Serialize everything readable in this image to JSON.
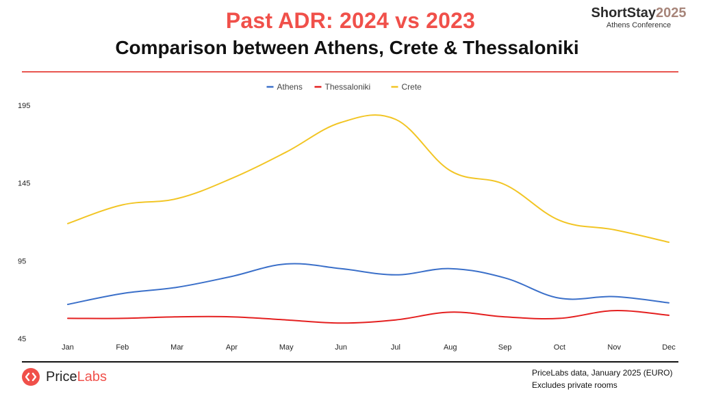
{
  "header": {
    "title": "Past ADR: 2024 vs 2023",
    "subtitle": "Comparison between Athens, Crete & Thessaloniki"
  },
  "brand": {
    "name_part1": "ShortStay",
    "name_part2": "2025",
    "tagline": "Athens Conference"
  },
  "footer": {
    "logo_part1": "Price",
    "logo_part2": "Labs",
    "source_line1": "PriceLabs data, January 2025 (EURO)",
    "source_line2": "Excludes private rooms"
  },
  "colors": {
    "accent": "#f0504a",
    "athens": "#3a6fc9",
    "thessaloniki": "#e41f1f",
    "crete": "#f2c524"
  },
  "chart_data": {
    "type": "line",
    "title": "Past ADR: 2024 vs 2023",
    "xlabel": "",
    "ylabel": "",
    "categories": [
      "Jan",
      "Feb",
      "Mar",
      "Apr",
      "May",
      "Jun",
      "Jul",
      "Aug",
      "Sep",
      "Oct",
      "Nov",
      "Dec"
    ],
    "ylim": [
      45,
      195
    ],
    "yticks": [
      45,
      95,
      145,
      195
    ],
    "legend_position": "top-center",
    "grid": false,
    "series": [
      {
        "name": "Athens",
        "color": "#3a6fc9",
        "values": [
          67,
          74,
          78,
          85,
          93,
          90,
          86,
          90,
          84,
          71,
          72,
          68
        ]
      },
      {
        "name": "Thessaloniki",
        "color": "#e41f1f",
        "values": [
          58,
          58,
          59,
          59,
          57,
          55,
          57,
          62,
          59,
          58,
          63,
          60
        ]
      },
      {
        "name": "Crete",
        "color": "#f2c524",
        "values": [
          119,
          131,
          135,
          148,
          165,
          184,
          186,
          153,
          144,
          121,
          115,
          107
        ]
      }
    ]
  }
}
